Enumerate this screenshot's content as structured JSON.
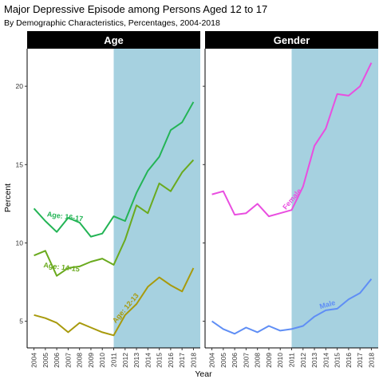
{
  "chart_data": {
    "type": "line",
    "title": "Major Depressive Episode among Persons Aged 12 to 17",
    "subtitle": "By Demographic Characteristics, Percentages, 2004-2018",
    "xlabel": "Year",
    "ylabel": "Percent",
    "ylim": [
      3.3,
      22.4
    ],
    "yticks": [
      5,
      10,
      15,
      20
    ],
    "x": [
      2004,
      2005,
      2006,
      2007,
      2008,
      2009,
      2010,
      2011,
      2012,
      2013,
      2014,
      2015,
      2016,
      2017,
      2018
    ],
    "x_tick_labels": [
      "2004",
      "2005",
      "2006",
      "2007",
      "2008",
      "2009",
      "2010",
      "2011",
      "2012",
      "2013",
      "2014",
      "2015",
      "2016",
      "2017",
      "2018"
    ],
    "shaded_region": {
      "from": 2011,
      "to": 2018.6,
      "color": "#a6d1e0"
    },
    "grid": false,
    "panels": [
      {
        "strip": "Age",
        "series": [
          {
            "name": "Age: 16-17",
            "color": "#23b455",
            "values": [
              12.2,
              11.4,
              10.7,
              11.6,
              11.3,
              10.4,
              10.6,
              11.7,
              11.4,
              13.2,
              14.6,
              15.5,
              17.2,
              17.7,
              19.0
            ]
          },
          {
            "name": "Age: 14-15",
            "color": "#6aaa1e",
            "values": [
              9.2,
              9.5,
              7.9,
              8.4,
              8.5,
              8.8,
              9.0,
              8.6,
              10.2,
              12.4,
              11.9,
              13.8,
              13.3,
              14.5,
              15.3
            ]
          },
          {
            "name": "Age: 12-13",
            "color": "#a89a0c",
            "values": [
              5.4,
              5.2,
              4.9,
              4.3,
              4.9,
              4.6,
              4.3,
              4.1,
              5.4,
              6.1,
              7.2,
              7.8,
              7.3,
              6.9,
              8.4
            ]
          }
        ]
      },
      {
        "strip": "Gender",
        "series": [
          {
            "name": "Female",
            "color": "#e94ee0",
            "values": [
              13.1,
              13.3,
              11.8,
              11.9,
              12.5,
              11.7,
              11.9,
              12.1,
              13.6,
              16.2,
              17.3,
              19.5,
              19.4,
              20.0,
              21.5
            ]
          },
          {
            "name": "Male",
            "color": "#5f8ef5",
            "values": [
              5.0,
              4.5,
              4.2,
              4.6,
              4.3,
              4.7,
              4.4,
              4.5,
              4.7,
              5.3,
              5.7,
              5.8,
              6.4,
              6.8,
              7.7
            ]
          }
        ]
      }
    ]
  }
}
